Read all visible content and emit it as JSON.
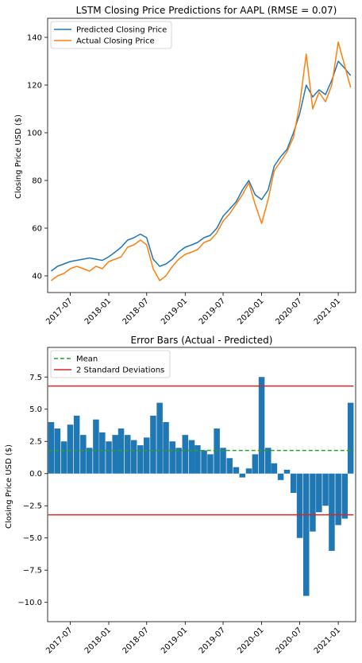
{
  "chart_data": [
    {
      "type": "line",
      "title": "LSTM Closing Price Predictions for  AAPL  (RMSE = 0.07)",
      "xlabel": "",
      "ylabel": "Closing Price USD ($)",
      "xlim": [
        "2017-03-15",
        "2021-03-25"
      ],
      "ylim": [
        33,
        148
      ],
      "yticks": [
        40,
        60,
        80,
        100,
        120,
        140
      ],
      "xticks": [
        "2017-07",
        "2018-01",
        "2018-07",
        "2019-01",
        "2019-07",
        "2020-01",
        "2020-07",
        "2021-01"
      ],
      "legend": "top-left",
      "grid": false,
      "colors": {
        "predicted": "#1f77b4",
        "actual": "#ff7f0e"
      },
      "x": [
        "2017-04-01",
        "2017-05-01",
        "2017-06-01",
        "2017-07-01",
        "2017-08-01",
        "2017-09-01",
        "2017-10-01",
        "2017-11-01",
        "2017-12-01",
        "2018-01-01",
        "2018-02-01",
        "2018-03-01",
        "2018-04-01",
        "2018-05-01",
        "2018-06-01",
        "2018-07-01",
        "2018-08-01",
        "2018-09-01",
        "2018-10-01",
        "2018-11-01",
        "2018-12-01",
        "2019-01-01",
        "2019-02-01",
        "2019-03-01",
        "2019-04-01",
        "2019-05-01",
        "2019-06-01",
        "2019-07-01",
        "2019-08-01",
        "2019-09-01",
        "2019-10-01",
        "2019-11-01",
        "2019-12-01",
        "2020-01-01",
        "2020-02-01",
        "2020-03-01",
        "2020-04-01",
        "2020-05-01",
        "2020-06-01",
        "2020-07-01",
        "2020-08-01",
        "2020-09-01",
        "2020-10-01",
        "2020-11-01",
        "2020-12-01",
        "2021-01-01",
        "2021-02-01",
        "2021-03-01"
      ],
      "series": [
        {
          "name": "Predicted Closing Price",
          "values": [
            42,
            44,
            45,
            46,
            46.5,
            47,
            47.5,
            47,
            46.5,
            48,
            50,
            52,
            55,
            56,
            57.5,
            56,
            47,
            44,
            45,
            47,
            50,
            52,
            53,
            54,
            56,
            57,
            60,
            65,
            68,
            71,
            76,
            80,
            74,
            72,
            76,
            86,
            90,
            93,
            100,
            108,
            120,
            115,
            118,
            116,
            122,
            130,
            127,
            124
          ]
        },
        {
          "name": "Actual Closing Price",
          "values": [
            38,
            40,
            41,
            43,
            44,
            43,
            42,
            44,
            43,
            46,
            47,
            48,
            52,
            53,
            55,
            53,
            43,
            38,
            40,
            44,
            47,
            49,
            50,
            51,
            54,
            55,
            58,
            63,
            66,
            70,
            74,
            79,
            70,
            62,
            72,
            84,
            88,
            92,
            98,
            112,
            133,
            110,
            117,
            113,
            120,
            138,
            128,
            119
          ]
        }
      ]
    },
    {
      "type": "bar",
      "title": "Error Bars (Actual - Predicted)",
      "xlabel": "",
      "ylabel": "Closing Price USD ($)",
      "xlim": [
        "2017-03-15",
        "2021-03-25"
      ],
      "ylim": [
        -11.5,
        9.8
      ],
      "yticks": [
        -10.0,
        -7.5,
        -5.0,
        -2.5,
        0.0,
        2.5,
        5.0,
        7.5
      ],
      "ytick_labels": [
        "−10.0",
        "−7.5",
        "−5.0",
        "−2.5",
        "0.0",
        "2.5",
        "5.0",
        "7.5"
      ],
      "xticks": [
        "2017-07",
        "2018-01",
        "2018-07",
        "2019-01",
        "2019-07",
        "2020-01",
        "2020-07",
        "2021-01"
      ],
      "legend": "top-left",
      "grid": false,
      "colors": {
        "bars": "#1f77b4",
        "mean": "#2ca02c",
        "std": "#d62728"
      },
      "mean": 1.8,
      "std_upper": 6.8,
      "std_lower": -3.2,
      "series": [
        {
          "name": "Mean"
        },
        {
          "name": "2 Standard Deviations"
        }
      ],
      "x": [
        "2017-04-01",
        "2017-05-01",
        "2017-06-01",
        "2017-07-01",
        "2017-08-01",
        "2017-09-01",
        "2017-10-01",
        "2017-11-01",
        "2017-12-01",
        "2018-01-01",
        "2018-02-01",
        "2018-03-01",
        "2018-04-01",
        "2018-05-01",
        "2018-06-01",
        "2018-07-01",
        "2018-08-01",
        "2018-09-01",
        "2018-10-01",
        "2018-11-01",
        "2018-12-01",
        "2019-01-01",
        "2019-02-01",
        "2019-03-01",
        "2019-04-01",
        "2019-05-01",
        "2019-06-01",
        "2019-07-01",
        "2019-08-01",
        "2019-09-01",
        "2019-10-01",
        "2019-11-01",
        "2019-12-01",
        "2020-01-01",
        "2020-02-01",
        "2020-03-01",
        "2020-04-01",
        "2020-05-01",
        "2020-06-01",
        "2020-07-01",
        "2020-08-01",
        "2020-09-01",
        "2020-10-01",
        "2020-11-01",
        "2020-12-01",
        "2021-01-01",
        "2021-02-01",
        "2021-03-01"
      ],
      "values": [
        4.0,
        3.5,
        2.5,
        3.8,
        4.5,
        3.0,
        2.0,
        4.2,
        3.2,
        2.5,
        3.0,
        3.5,
        3.0,
        2.6,
        2.2,
        2.8,
        4.5,
        5.5,
        4.0,
        2.5,
        2.0,
        3.0,
        2.6,
        2.2,
        1.8,
        1.5,
        3.5,
        2.0,
        1.2,
        0.5,
        -0.3,
        0.4,
        1.5,
        7.5,
        2.0,
        0.8,
        -0.5,
        0.3,
        -1.5,
        -5.0,
        -9.5,
        -4.5,
        -3.0,
        -2.5,
        -6.0,
        -4.0,
        -3.5,
        5.5
      ]
    }
  ]
}
